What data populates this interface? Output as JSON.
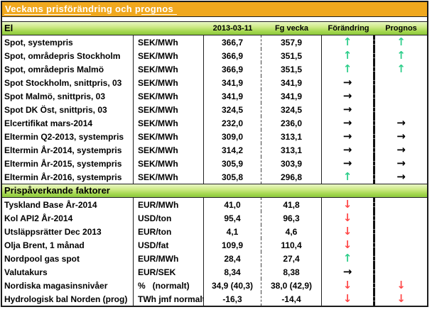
{
  "title": "Veckans prisförändring och prognos",
  "columns": [
    "2013-03-11",
    "Fg vecka",
    "Förändring",
    "Prognos"
  ],
  "arrows": {
    "up": "↑",
    "down": "↓",
    "flat": "→"
  },
  "colors": {
    "title_bg": "#F0A81E",
    "header_green_top": "#E9F7C6",
    "header_green_bottom": "#8CC83C",
    "arrow_up": "#2FCE8B",
    "arrow_down": "#FF4A4A",
    "arrow_flat": "#000000"
  },
  "sections": [
    {
      "label": "El",
      "rows": [
        {
          "label": "Spot, systempris",
          "unit": "SEK/MWh",
          "current": "366,7",
          "previous": "357,9",
          "change": "up",
          "forecast": "up"
        },
        {
          "label": "Spot, områdepris Stockholm",
          "unit": "SEK/MWh",
          "current": "366,9",
          "previous": "351,5",
          "change": "up",
          "forecast": "up"
        },
        {
          "label": "Spot, områdepris Malmö",
          "unit": "SEK/MWh",
          "current": "366,9",
          "previous": "351,5",
          "change": "up",
          "forecast": "up"
        },
        {
          "label": "Spot Stockholm, snittpris,  03",
          "unit": "SEK/MWh",
          "current": "341,9",
          "previous": "341,9",
          "change": "flat",
          "forecast": ""
        },
        {
          "label": "Spot Malmö, snittpris,  03",
          "unit": "SEK/MWh",
          "current": "341,9",
          "previous": "341,9",
          "change": "flat",
          "forecast": ""
        },
        {
          "label": "Spot DK Öst, snittpris,  03",
          "unit": "SEK/MWh",
          "current": "324,5",
          "previous": "324,5",
          "change": "flat",
          "forecast": ""
        },
        {
          "label": "Elcertifikat mars-2014",
          "unit": "SEK/MWh",
          "current": "232,0",
          "previous": "236,0",
          "change": "flat",
          "forecast": "flat"
        },
        {
          "label": "Eltermin Q2-2013, systempris",
          "unit": "SEK/MWh",
          "current": "309,0",
          "previous": "313,1",
          "change": "flat",
          "forecast": "flat"
        },
        {
          "label": "Eltermin År-2014, systempris",
          "unit": "SEK/MWh",
          "current": "314,2",
          "previous": "313,1",
          "change": "flat",
          "forecast": "flat"
        },
        {
          "label": "Eltermin År-2015, systempris",
          "unit": "SEK/MWh",
          "current": "305,9",
          "previous": "303,9",
          "change": "flat",
          "forecast": "flat"
        },
        {
          "label": "Eltermin År-2016, systempris",
          "unit": "SEK/MWh",
          "current": "305,8",
          "previous": "296,8",
          "change": "up",
          "forecast": "flat"
        }
      ]
    },
    {
      "label": "Prispåverkande faktorer",
      "rows": [
        {
          "label": "Tyskland Base År-2014",
          "unit": "EUR/MWh",
          "current": "41,0",
          "previous": "41,8",
          "change": "down",
          "forecast": ""
        },
        {
          "label": "Kol API2 År-2014",
          "unit": "USD/ton",
          "current": "95,4",
          "previous": "96,3",
          "change": "down",
          "forecast": ""
        },
        {
          "label": "Utsläppsrätter Dec 2013",
          "unit": "EUR/ton",
          "current": "4,1",
          "previous": "4,6",
          "change": "down",
          "forecast": ""
        },
        {
          "label": "Olja Brent, 1 månad",
          "unit": "USD/fat",
          "current": "109,9",
          "previous": "110,4",
          "change": "down",
          "forecast": ""
        },
        {
          "label": "Nordpool gas spot",
          "unit": "EUR/MWh",
          "current": "28,4",
          "previous": "27,4",
          "change": "up",
          "forecast": ""
        },
        {
          "label": "Valutakurs",
          "unit": "EUR/SEK",
          "current": "8,34",
          "previous": "8,38",
          "change": "flat",
          "forecast": ""
        },
        {
          "label": "Nordiska magasinsnivåer",
          "unit": "%   (normalt)",
          "current": "34,9 (40,3)",
          "previous": "38,0 (42,9)",
          "change": "down",
          "forecast": "down"
        },
        {
          "label": "Hydrologisk bal Norden (prog)",
          "unit": "TWh jmf normalt",
          "current": "-16,3",
          "previous": "-14,4",
          "change": "down",
          "forecast": "down"
        }
      ]
    }
  ]
}
